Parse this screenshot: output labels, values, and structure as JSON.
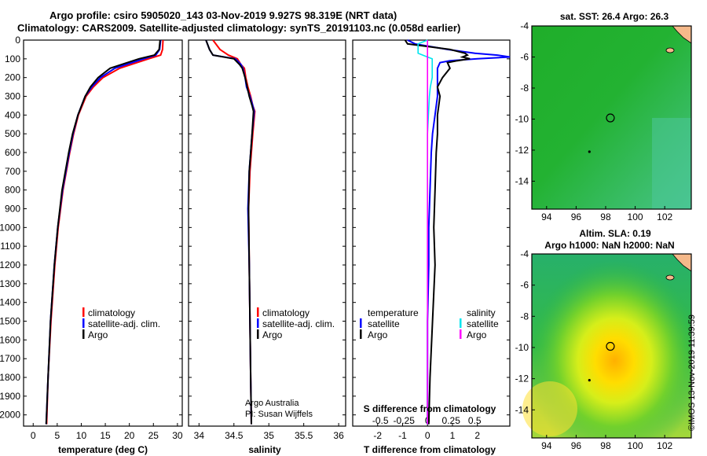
{
  "header": {
    "title_line1": "Argo profile: csiro 5905020_143 03-Nov-2019 9.927S 98.319E (NRT data)",
    "title_line2": "Climatology: CARS2009. Satellite-adjusted climatology: synTS_20191103.nc (0.058d earlier)"
  },
  "depth_ticks": [
    "0",
    "100",
    "200",
    "300",
    "400",
    "500",
    "600",
    "700",
    "800",
    "900",
    "1000",
    "1100",
    "1200",
    "1300",
    "1400",
    "1500",
    "1600",
    "1700",
    "1800",
    "1900",
    "2000"
  ],
  "colors": {
    "climatology": "#ff0000",
    "satellite": "#0000ff",
    "argo": "#000000",
    "satellite_salinity": "#00e5ee",
    "argo_salinity": "#ff00ff",
    "ocean_green": "#22bb33",
    "land": "#f5b98a"
  },
  "chart_data": [
    {
      "type": "line",
      "panel": "temperature",
      "xlabel": "temperature (deg C)",
      "ylabel": "",
      "xlim": [
        -2,
        31
      ],
      "ylim": [
        2060,
        0
      ],
      "xticks": [
        "0",
        "5",
        "10",
        "15",
        "20",
        "25",
        "30"
      ],
      "depth": [
        0,
        50,
        80,
        100,
        150,
        200,
        250,
        300,
        400,
        500,
        600,
        800,
        1000,
        1200,
        1500,
        1800,
        2050
      ],
      "series": [
        {
          "name": "climatology",
          "values": [
            27,
            26.9,
            26.5,
            24,
            18,
            14.5,
            12.5,
            11,
            9.4,
            8.4,
            7.6,
            6.2,
            5.2,
            4.5,
            3.7,
            3.1,
            2.8
          ]
        },
        {
          "name": "satellite-adj. clim.",
          "values": [
            26.5,
            26.3,
            25.5,
            23,
            17,
            14,
            12.2,
            10.8,
            9.3,
            8.3,
            7.5,
            6.1,
            5.1,
            4.4,
            3.6,
            3.1,
            2.7
          ]
        },
        {
          "name": "Argo",
          "values": [
            26.4,
            26.2,
            25.2,
            22,
            16,
            13.5,
            11.9,
            10.8,
            9.3,
            8.2,
            7.4,
            6,
            5.1,
            4.4,
            3.6,
            3.1,
            2.7
          ]
        }
      ],
      "legend": [
        "climatology",
        "satellite-adj. clim.",
        "Argo"
      ]
    },
    {
      "type": "line",
      "panel": "salinity",
      "xlabel": "salinity",
      "xlim": [
        33.85,
        36.1
      ],
      "ylim": [
        2060,
        0
      ],
      "xticks": [
        "34",
        "34.5",
        "35",
        "35.5",
        "36"
      ],
      "depth": [
        0,
        50,
        80,
        100,
        130,
        150,
        200,
        250,
        300,
        350,
        380,
        500,
        700,
        900,
        1200,
        1500,
        1800,
        2050
      ],
      "series": [
        {
          "name": "climatology",
          "values": [
            34.2,
            34.3,
            34.42,
            34.55,
            34.6,
            34.65,
            34.67,
            34.7,
            34.74,
            34.77,
            34.8,
            34.77,
            34.73,
            34.71,
            34.72,
            34.73,
            34.74,
            34.75
          ]
        },
        {
          "name": "satellite-adj. clim.",
          "values": [
            34.1,
            34.15,
            34.2,
            34.52,
            34.6,
            34.63,
            34.66,
            34.68,
            34.73,
            34.77,
            34.79,
            34.76,
            34.72,
            34.7,
            34.72,
            34.73,
            34.74,
            34.75
          ]
        },
        {
          "name": "Argo",
          "values": [
            34.1,
            34.15,
            34.2,
            34.5,
            34.58,
            34.62,
            34.66,
            34.69,
            34.72,
            34.76,
            34.78,
            34.76,
            34.72,
            34.71,
            34.72,
            34.73,
            34.74,
            34.75
          ]
        }
      ],
      "legend": [
        "climatology",
        "satellite-adj. clim.",
        "Argo"
      ],
      "annotation": [
        "Argo Australia",
        "PI: Susan Wijffels"
      ]
    },
    {
      "type": "line",
      "panel": "difference",
      "xlabel": "T difference from climatology",
      "xlim": [
        -3,
        3.3
      ],
      "ylim": [
        2060,
        0
      ],
      "xticks": [
        "-2",
        "-1",
        "0",
        "1",
        "2"
      ],
      "s_axis_label": "S difference from climatology",
      "s_xticks": [
        "-0.5",
        "-0.25",
        "0",
        "0.25",
        "0.5"
      ],
      "depth": [
        0,
        20,
        50,
        70,
        80,
        90,
        100,
        110,
        120,
        150,
        200,
        250,
        300,
        400,
        500,
        600,
        800,
        1000,
        1200,
        1500,
        1800,
        2050
      ],
      "series": [
        {
          "name": "temperature satellite",
          "values": [
            -0.8,
            -0.5,
            0.8,
            1.9,
            2.8,
            3.3,
            2,
            0.9,
            0.5,
            0.4,
            0.4,
            0.4,
            0.4,
            0.3,
            0.2,
            0.15,
            0.1,
            0.05,
            0.05,
            0,
            0,
            0
          ]
        },
        {
          "name": "temperature Argo",
          "values": [
            -0.9,
            -0.8,
            0.9,
            1.5,
            1.6,
            1.4,
            1.7,
            1.2,
            0.8,
            0.9,
            0.6,
            0.4,
            0.5,
            0.4,
            0.4,
            0.35,
            0.3,
            0.25,
            0.3,
            0.2,
            0.1,
            0.05
          ]
        },
        {
          "name": "salinity satellite",
          "values": [
            0,
            -0.1,
            -0.1,
            -0.1,
            -0.05,
            0,
            0.05,
            0.05,
            0.05,
            0.05,
            0.05,
            0.03,
            0.02,
            0.01,
            0,
            0,
            0,
            0,
            0,
            0,
            0,
            0
          ]
        },
        {
          "name": "salinity Argo",
          "values": [
            0,
            0,
            0,
            0,
            0,
            0,
            0,
            0,
            0,
            0,
            0,
            0,
            0,
            0,
            0,
            0,
            0,
            0,
            0,
            0,
            0,
            0
          ]
        }
      ],
      "legend_temperature_title": "temperature",
      "legend_salinity_title": "salinity",
      "legend_temperature": [
        "satellite",
        "Argo"
      ],
      "legend_salinity": [
        "satellite",
        "Argo"
      ]
    },
    {
      "type": "heatmap",
      "panel": "sst_map",
      "title": "sat. SST: 26.4 Argo: 26.3",
      "xlim": [
        93,
        103.8
      ],
      "ylim": [
        -15.8,
        -4
      ],
      "xticks": [
        "94",
        "96",
        "98",
        "100",
        "102"
      ],
      "yticks": [
        "-4",
        "-6",
        "-8",
        "-10",
        "-12",
        "-14"
      ],
      "argo_position": {
        "lon": 98.319,
        "lat": -9.927
      }
    },
    {
      "type": "heatmap",
      "panel": "sla_map",
      "title": "Altim. SLA: 0.19",
      "subtitle": "Argo h1000: NaN h2000: NaN",
      "xlim": [
        93,
        103.8
      ],
      "ylim": [
        -15.8,
        -4
      ],
      "xticks": [
        "94",
        "96",
        "98",
        "100",
        "102"
      ],
      "yticks": [
        "-4",
        "-6",
        "-8",
        "-10",
        "-12",
        "-14"
      ],
      "argo_position": {
        "lon": 98.319,
        "lat": -9.927
      }
    }
  ],
  "stamp": "©IMOS 13-Nov-2019 11:39:59"
}
